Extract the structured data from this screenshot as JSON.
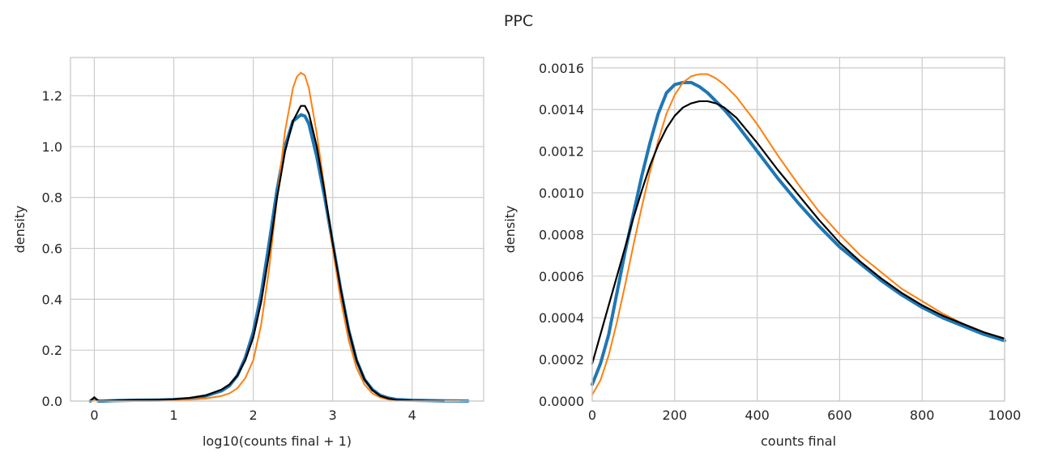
{
  "figure": {
    "title": "PPC"
  },
  "chart_data": [
    {
      "type": "line",
      "xlabel": "log10(counts final + 1)",
      "ylabel": "density",
      "xlim": [
        -0.3,
        4.9
      ],
      "ylim": [
        0,
        1.35
      ],
      "xticks": [
        0,
        1,
        2,
        3,
        4
      ],
      "yticks": [
        0.0,
        0.2,
        0.4,
        0.6,
        0.8,
        1.0,
        1.2
      ],
      "ytick_labels": [
        "0.0",
        "0.2",
        "0.4",
        "0.6",
        "0.8",
        "1.0",
        "1.2"
      ],
      "grid": true,
      "series": [
        {
          "color": "#1f77b4",
          "width": 4,
          "x": [
            -0.05,
            0,
            0.05,
            0.1,
            0.3,
            0.5,
            0.8,
            1.0,
            1.2,
            1.4,
            1.6,
            1.7,
            1.8,
            1.9,
            2.0,
            2.1,
            2.2,
            2.3,
            2.4,
            2.5,
            2.6,
            2.65,
            2.7,
            2.8,
            2.9,
            3.0,
            3.1,
            3.2,
            3.3,
            3.4,
            3.5,
            3.6,
            3.7,
            3.8,
            4.0,
            4.2,
            4.4,
            4.6,
            4.7
          ],
          "y": [
            0.0,
            0.01,
            0.0,
            0.0,
            0.002,
            0.003,
            0.004,
            0.006,
            0.01,
            0.02,
            0.04,
            0.06,
            0.1,
            0.17,
            0.27,
            0.42,
            0.62,
            0.83,
            1.0,
            1.1,
            1.125,
            1.12,
            1.09,
            0.96,
            0.8,
            0.62,
            0.44,
            0.28,
            0.16,
            0.085,
            0.045,
            0.022,
            0.012,
            0.006,
            0.003,
            0.002,
            0.001,
            0.0005,
            0.0
          ]
        },
        {
          "color": "#ff7f0e",
          "width": 2,
          "x": [
            -0.05,
            0,
            0.05,
            0.1,
            0.3,
            0.5,
            0.8,
            1.0,
            1.2,
            1.4,
            1.6,
            1.7,
            1.8,
            1.9,
            2.0,
            2.1,
            2.2,
            2.3,
            2.4,
            2.5,
            2.55,
            2.6,
            2.65,
            2.7,
            2.8,
            2.9,
            3.0,
            3.1,
            3.2,
            3.3,
            3.4,
            3.5,
            3.6,
            3.7,
            3.8,
            4.0,
            4.2,
            4.4,
            4.6
          ],
          "y": [
            0.0,
            0.005,
            0.0,
            0.0,
            0.001,
            0.001,
            0.002,
            0.003,
            0.005,
            0.01,
            0.02,
            0.03,
            0.05,
            0.09,
            0.16,
            0.3,
            0.52,
            0.8,
            1.06,
            1.23,
            1.275,
            1.29,
            1.28,
            1.23,
            1.05,
            0.83,
            0.6,
            0.4,
            0.24,
            0.13,
            0.065,
            0.03,
            0.014,
            0.006,
            0.003,
            0.001,
            0.0005,
            0.0002,
            0.0
          ]
        },
        {
          "color": "#000000",
          "width": 2.2,
          "x": [
            -0.05,
            0,
            0.03,
            0.06,
            0.1,
            0.3,
            0.5,
            0.8,
            1.0,
            1.2,
            1.4,
            1.6,
            1.7,
            1.8,
            1.9,
            2.0,
            2.1,
            2.2,
            2.3,
            2.4,
            2.5,
            2.6,
            2.65,
            2.7,
            2.8,
            2.9,
            3.0,
            3.1,
            3.2,
            3.3,
            3.4,
            3.5,
            3.6,
            3.7,
            3.8,
            4.0,
            4.2,
            4.4
          ],
          "y": [
            0.0,
            0.015,
            0.005,
            0.0,
            0.0,
            0.003,
            0.004,
            0.005,
            0.007,
            0.012,
            0.022,
            0.045,
            0.065,
            0.1,
            0.16,
            0.25,
            0.39,
            0.58,
            0.8,
            0.98,
            1.1,
            1.16,
            1.16,
            1.13,
            1.0,
            0.82,
            0.62,
            0.44,
            0.28,
            0.16,
            0.085,
            0.043,
            0.02,
            0.01,
            0.005,
            0.002,
            0.001,
            0.0
          ]
        }
      ]
    },
    {
      "type": "line",
      "xlabel": "counts final",
      "ylabel": "density",
      "xlim": [
        0,
        1000
      ],
      "ylim": [
        0,
        0.00165
      ],
      "xticks": [
        0,
        200,
        400,
        600,
        800,
        1000
      ],
      "yticks": [
        0.0,
        0.0002,
        0.0004,
        0.0006,
        0.0008,
        0.001,
        0.0012,
        0.0014,
        0.0016
      ],
      "ytick_labels": [
        "0.0000",
        "0.0002",
        "0.0004",
        "0.0006",
        "0.0008",
        "0.0010",
        "0.0012",
        "0.0014",
        "0.0016"
      ],
      "grid": true,
      "series": [
        {
          "color": "#1f77b4",
          "width": 4,
          "x": [
            0,
            20,
            40,
            60,
            80,
            100,
            120,
            140,
            160,
            180,
            200,
            220,
            240,
            260,
            280,
            300,
            320,
            350,
            400,
            450,
            500,
            550,
            600,
            650,
            700,
            750,
            800,
            850,
            900,
            950,
            1000
          ],
          "y": [
            8e-05,
            0.00018,
            0.00032,
            0.00052,
            0.00072,
            0.0009,
            0.00108,
            0.00124,
            0.00138,
            0.00148,
            0.00152,
            0.00153,
            0.00153,
            0.00151,
            0.00148,
            0.00144,
            0.0014,
            0.00133,
            0.0012,
            0.00107,
            0.00095,
            0.00084,
            0.00074,
            0.00066,
            0.00058,
            0.00051,
            0.00045,
            0.0004,
            0.00036,
            0.00032,
            0.00029
          ]
        },
        {
          "color": "#ff7f0e",
          "width": 2,
          "x": [
            0,
            20,
            40,
            60,
            80,
            100,
            120,
            140,
            160,
            180,
            200,
            220,
            240,
            260,
            280,
            300,
            320,
            350,
            400,
            450,
            500,
            550,
            600,
            650,
            700,
            750,
            800,
            850,
            900,
            950,
            1000
          ],
          "y": [
            3e-05,
            0.0001,
            0.00022,
            0.00038,
            0.00056,
            0.00075,
            0.00093,
            0.0011,
            0.00125,
            0.00138,
            0.00147,
            0.00153,
            0.00156,
            0.00157,
            0.00157,
            0.00155,
            0.00152,
            0.00146,
            0.00133,
            0.00118,
            0.00104,
            0.00091,
            0.0008,
            0.0007,
            0.00062,
            0.00054,
            0.00048,
            0.00042,
            0.00037,
            0.00033,
            0.0003
          ]
        },
        {
          "color": "#000000",
          "width": 2.2,
          "x": [
            0,
            20,
            40,
            60,
            80,
            100,
            120,
            140,
            160,
            180,
            200,
            220,
            240,
            260,
            280,
            300,
            320,
            350,
            400,
            450,
            500,
            550,
            600,
            650,
            700,
            750,
            800,
            850,
            900,
            950,
            1000
          ],
          "y": [
            0.00018,
            0.00032,
            0.00046,
            0.0006,
            0.00074,
            0.00088,
            0.00101,
            0.00113,
            0.00123,
            0.00131,
            0.00137,
            0.00141,
            0.00143,
            0.00144,
            0.00144,
            0.00143,
            0.00141,
            0.00136,
            0.00124,
            0.00111,
            0.00099,
            0.00087,
            0.00076,
            0.00067,
            0.00059,
            0.00052,
            0.00046,
            0.00041,
            0.00037,
            0.00033,
            0.0003
          ]
        }
      ]
    }
  ]
}
